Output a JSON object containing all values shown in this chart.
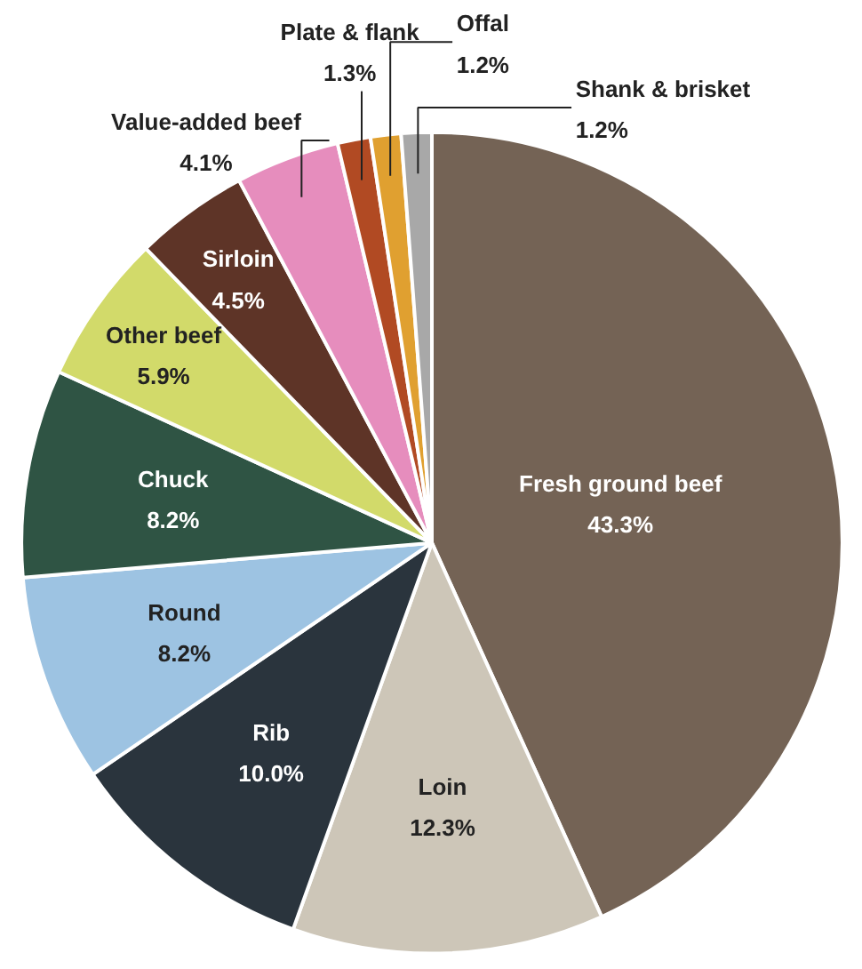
{
  "chart_data": {
    "type": "pie",
    "categories": [
      "Fresh ground beef",
      "Loin",
      "Rib",
      "Round",
      "Chuck",
      "Other beef",
      "Sirloin",
      "Value-added beef",
      "Plate & flank",
      "Offal",
      "Shank & brisket"
    ],
    "values": [
      43.3,
      12.3,
      10.0,
      8.2,
      8.2,
      5.9,
      4.5,
      4.1,
      1.3,
      1.2,
      1.2
    ],
    "colors": [
      "#746355",
      "#cdc6b8",
      "#2a343d",
      "#9dc3e2",
      "#2f5444",
      "#d2da6a",
      "#5e3427",
      "#e68dbd",
      "#b14a23",
      "#e0a030",
      "#a8a8a8"
    ],
    "data_labels": true,
    "value_labels": [
      "43.3%",
      "12.3%",
      "10.0%",
      "8.2%",
      "8.2%",
      "5.9%",
      "4.5%",
      "4.1%",
      "1.3%",
      "1.2%",
      "1.2%"
    ]
  }
}
